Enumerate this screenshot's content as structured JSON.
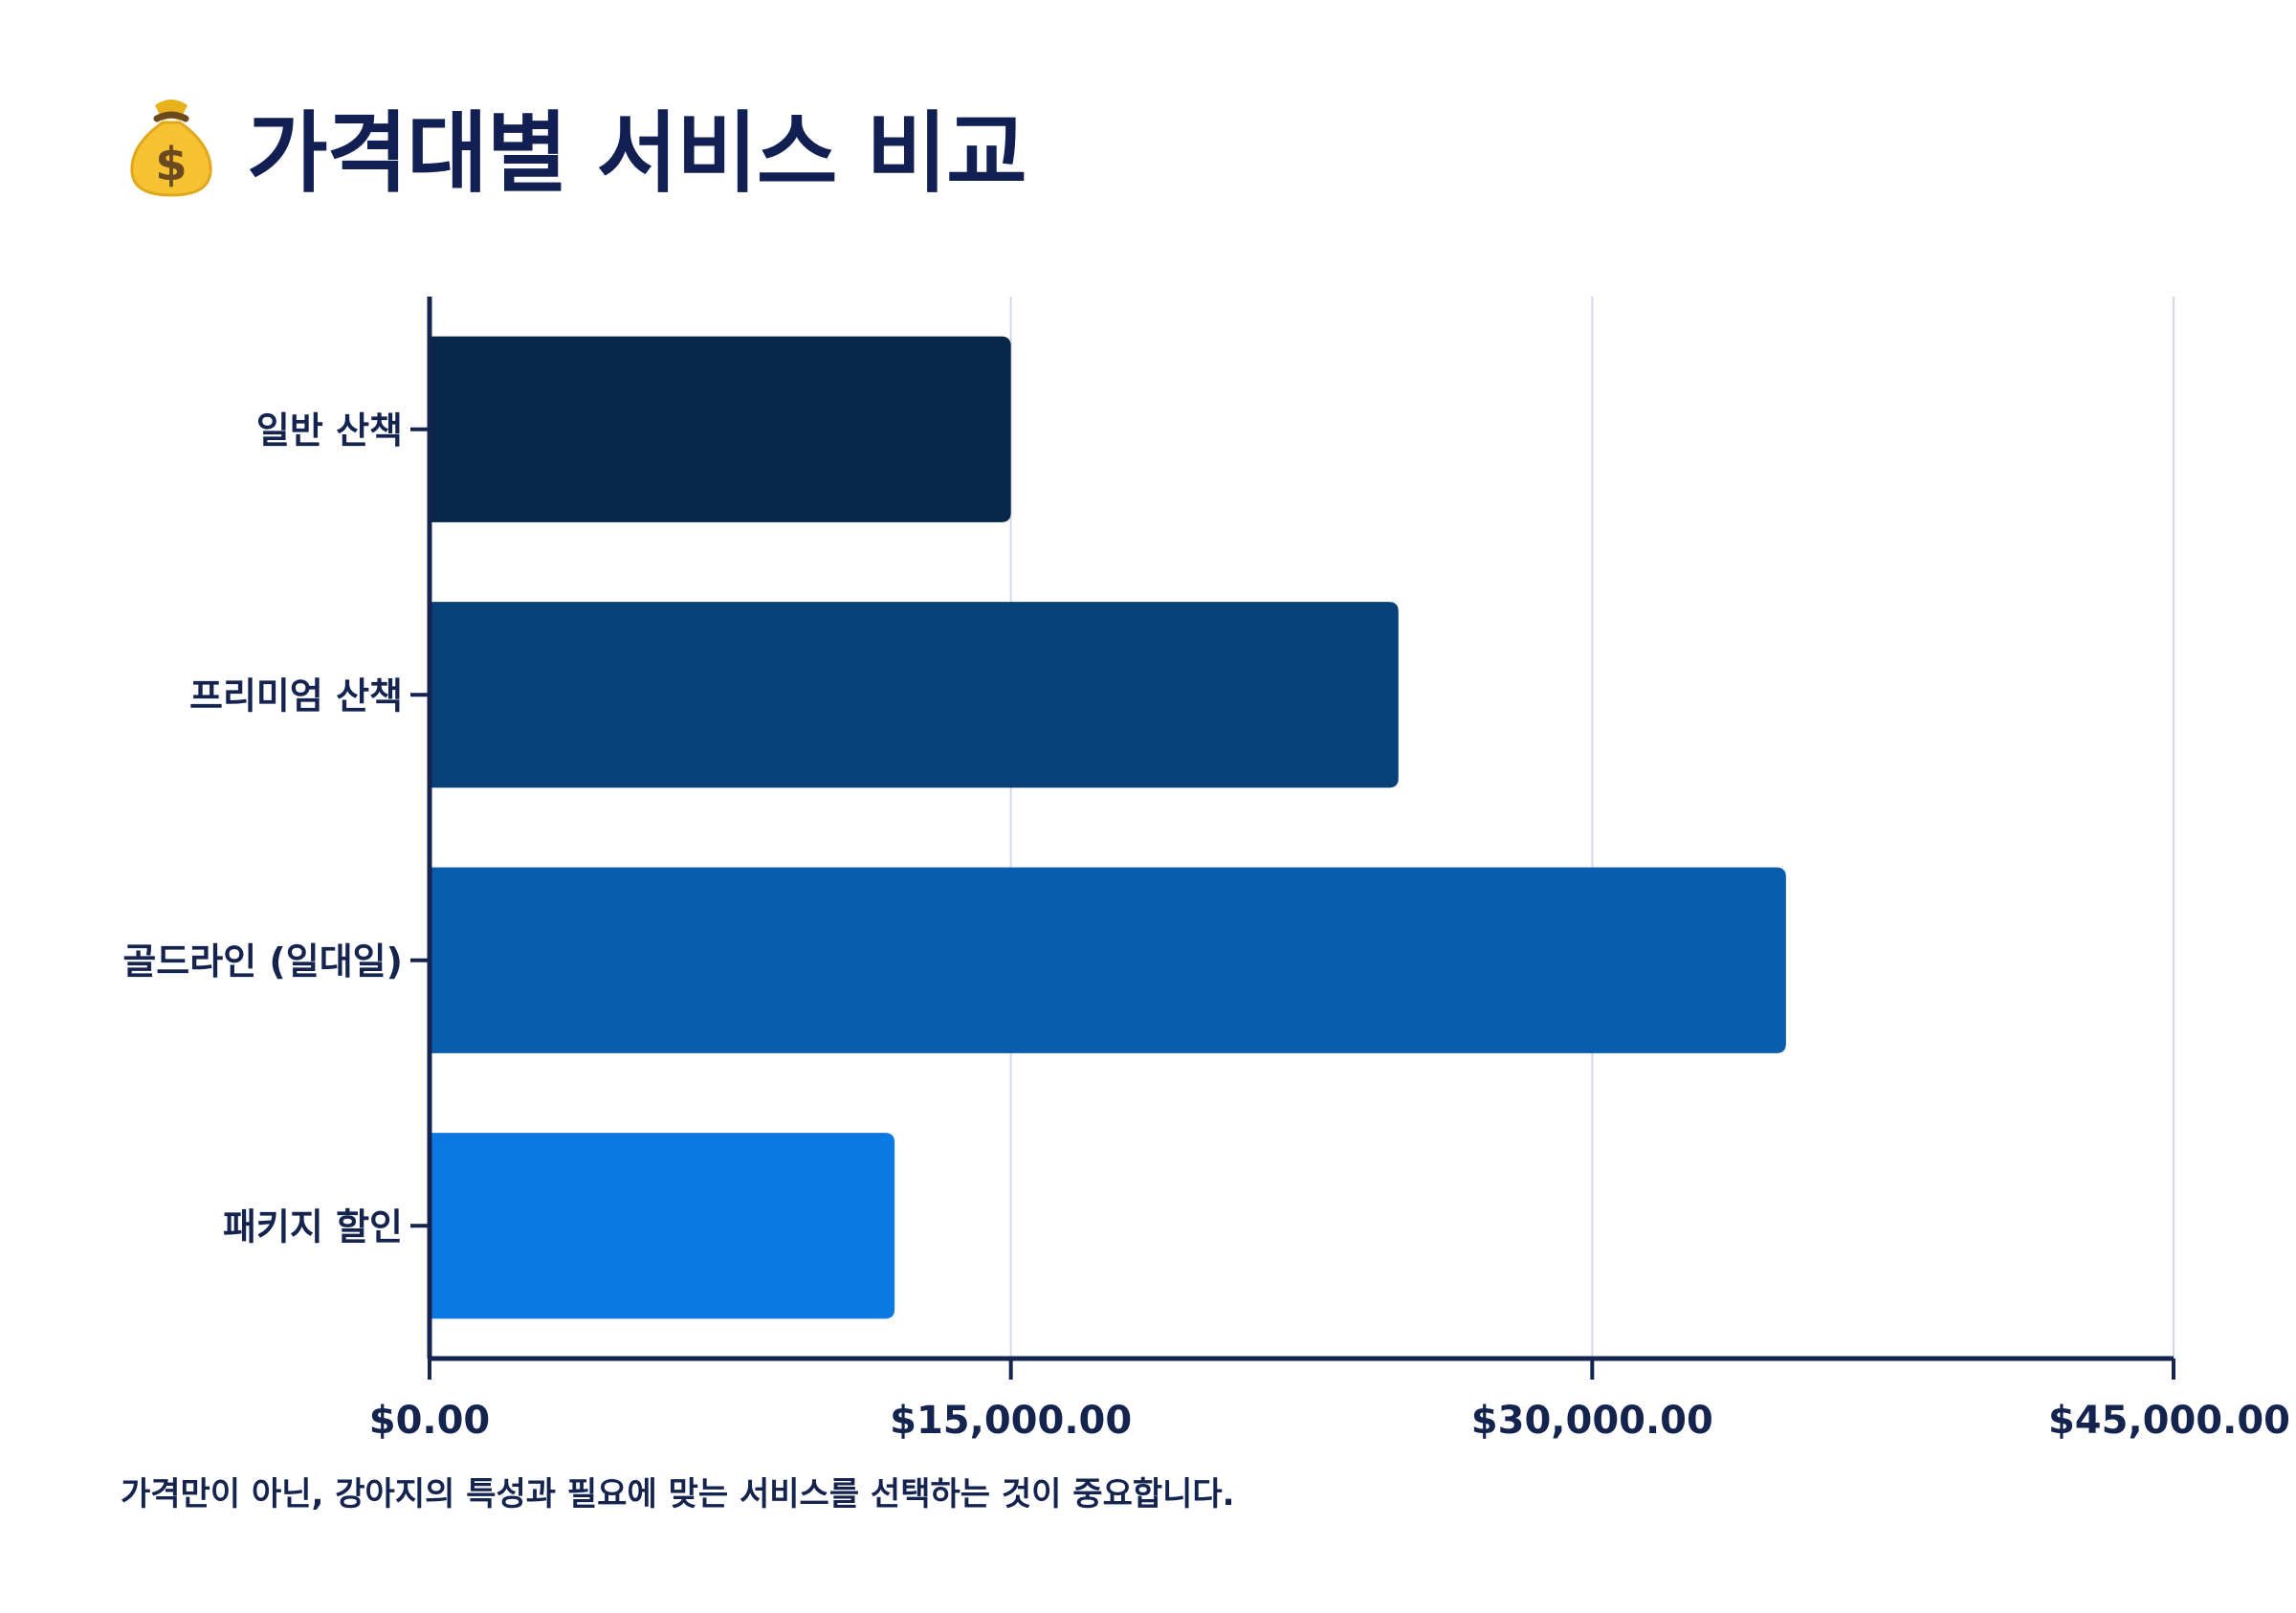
{
  "header": {
    "icon": "money-bag-icon",
    "title": "가격대별 서비스 비교"
  },
  "chart_data": {
    "type": "bar",
    "orientation": "horizontal",
    "title": "가격대별 서비스 비교",
    "categories": [
      "일반 산책",
      "프리미엄 산책",
      "골드라인 (일대일)",
      "패키지 할인"
    ],
    "values": [
      15000,
      25000,
      35000,
      12000
    ],
    "colors": [
      "#062749",
      "#08407a",
      "#0a5dad",
      "#0c79e3"
    ],
    "xlim": [
      0,
      45000
    ],
    "xticks": [
      0,
      15000,
      30000,
      45000
    ],
    "xtick_labels": [
      "$0.00",
      "$15,000.00",
      "$30,000.00",
      "$45,000.00"
    ],
    "xlabel": "",
    "ylabel": "",
    "grid": "vertical",
    "axis_color": "#15244f",
    "grid_color": "#d3d8e6"
  },
  "footer": {
    "note": "가격만이 아닌, 강아지의 특성과 필요에 맞는 서비스를 선택하는 것이 중요합니다."
  }
}
